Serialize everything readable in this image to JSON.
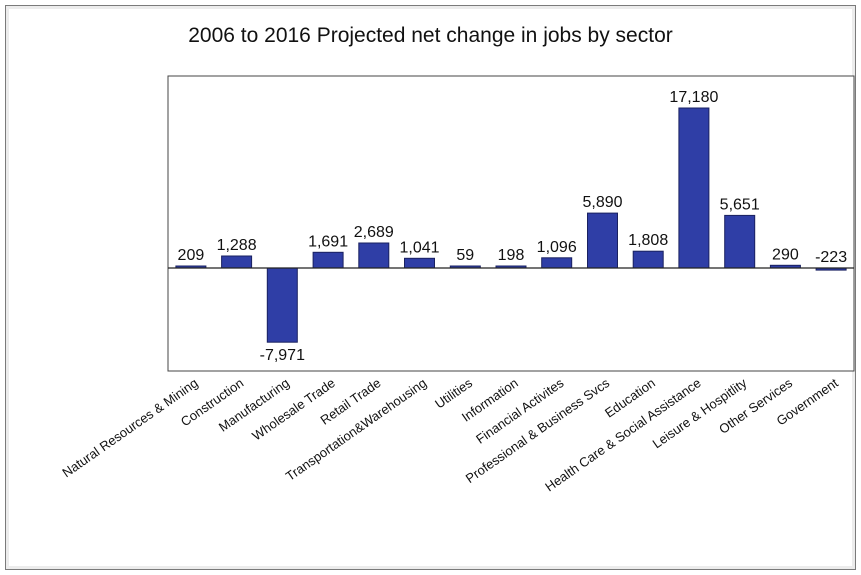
{
  "chart_data": {
    "type": "bar",
    "title": "2006 to 2016 Projected net change in jobs by sector",
    "xlabel": "",
    "ylabel": "",
    "categories": [
      "Natural Resources & Mining",
      "Construction",
      "Manufacturing",
      "Wholesale Trade",
      "Retail Trade",
      "Transportation&Warehousing",
      "Utilities",
      "Information",
      "Financial Activites",
      "Professional & Business Svcs",
      "Education",
      "Health Care & Social Assistance",
      "Leisure & Hospitlity",
      "Other Services",
      "Government"
    ],
    "values": [
      209,
      1288,
      -7971,
      1691,
      2689,
      1041,
      59,
      198,
      1096,
      5890,
      1808,
      17180,
      5651,
      290,
      -223
    ],
    "data_labels": [
      "209",
      "1,288",
      "-7,971",
      "1,691",
      "2,689",
      "1,041",
      "59",
      "198",
      "1,096",
      "5,890",
      "1,808",
      "17,180",
      "5,651",
      "290",
      "-223"
    ],
    "ylim": [
      -8000,
      18000
    ],
    "grid": false,
    "legend": "none",
    "colors": {
      "bar_fill": "#2f3ea6",
      "bar_stroke": "#1a2160",
      "plot_border": "#444444",
      "background": "#ffffff"
    }
  }
}
